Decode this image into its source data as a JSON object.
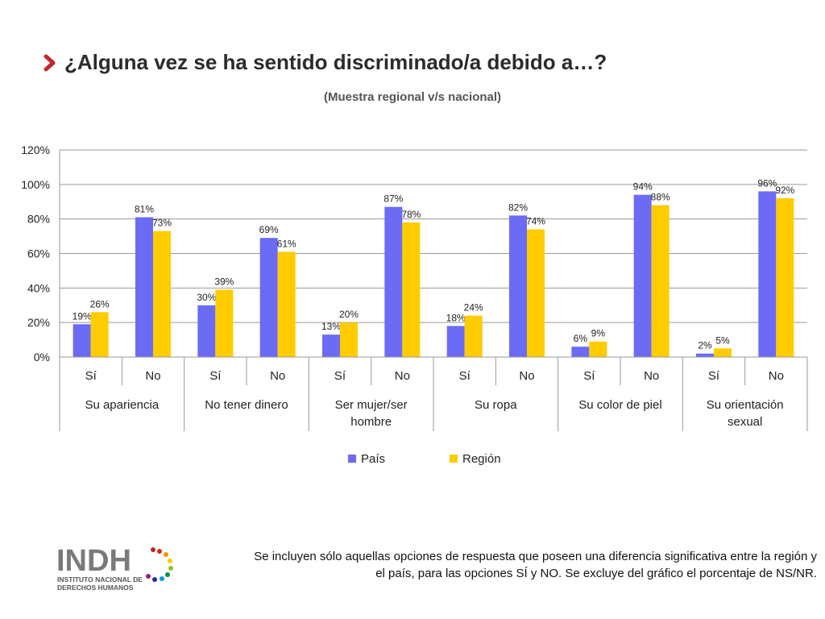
{
  "header": {
    "title": "¿Alguna vez se ha sentido discriminado/a debido a…?",
    "subtitle": "(Muestra regional v/s nacional)"
  },
  "colors": {
    "pais": "#6b6bf6",
    "region": "#ffcc00",
    "accent": "#c0282d"
  },
  "icons": {
    "bullet": "chevron-right-icon"
  },
  "chart_data": {
    "type": "bar",
    "groups": [
      "Su apariencia",
      "No tener dinero",
      "Ser mujer/ser hombre",
      "Su ropa",
      "Su color de piel",
      "Su orientación sexual"
    ],
    "categories": [
      "Sí",
      "No",
      "Sí",
      "No",
      "Sí",
      "No",
      "Sí",
      "No",
      "Sí",
      "No",
      "Sí",
      "No"
    ],
    "series": [
      {
        "name": "País",
        "color": "#6b6bf6",
        "values": [
          19,
          81,
          30,
          69,
          13,
          87,
          18,
          82,
          6,
          94,
          2,
          96
        ]
      },
      {
        "name": "Región",
        "color": "#ffcc00",
        "values": [
          26,
          73,
          39,
          61,
          20,
          78,
          24,
          74,
          9,
          88,
          5,
          92
        ]
      }
    ],
    "yticks": [
      "0%",
      "20%",
      "40%",
      "60%",
      "80%",
      "100%",
      "120%"
    ],
    "ylim": [
      0,
      120
    ],
    "grid": true,
    "legend": "bottom"
  },
  "footer": {
    "note": "Se incluyen sólo aquellas opciones de respuesta que poseen una diferencia significativa entre la región y el país, para las opciones SÍ y NO. Se excluye del gráfico el porcentaje de NS/NR.",
    "logo_name": "INDH",
    "logo_line1": "INSTITUTO NACIONAL DE",
    "logo_line2": "DERECHOS HUMANOS"
  }
}
